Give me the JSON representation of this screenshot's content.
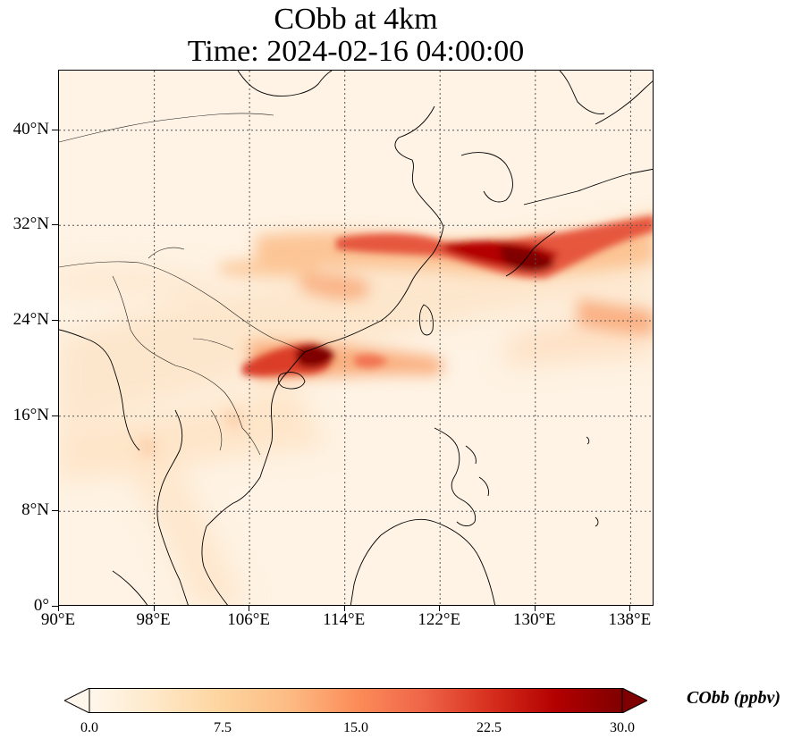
{
  "title": {
    "line1": "CObb at 4km",
    "line2": "Time: 2024-02-16 04:00:00"
  },
  "map": {
    "lon_range": [
      90,
      140
    ],
    "lat_range": [
      0,
      45
    ],
    "x_ticks": [
      "90°E",
      "98°E",
      "106°E",
      "114°E",
      "122°E",
      "130°E",
      "138°E"
    ],
    "y_ticks": [
      "0°",
      "8°N",
      "16°N",
      "24°N",
      "32°N",
      "40°N"
    ],
    "gridlines": true,
    "features": [
      "coastlines",
      "country-borders"
    ],
    "plume_color_max": "#7f0000",
    "plume_color_mid": "#e34a33",
    "background_color": "#fff5eb"
  },
  "colorbar": {
    "ticks": [
      "0.0",
      "7.5",
      "15.0",
      "22.5",
      "30.0"
    ],
    "range": [
      0,
      30
    ],
    "label": "CObb (ppbv)",
    "colormap": "OrRd",
    "extend": "both",
    "colors": [
      "#fff7ec",
      "#fee8c8",
      "#fdd49e",
      "#fdbb84",
      "#fc8d59",
      "#ef6548",
      "#d7301f",
      "#b30000",
      "#7f0000"
    ]
  }
}
